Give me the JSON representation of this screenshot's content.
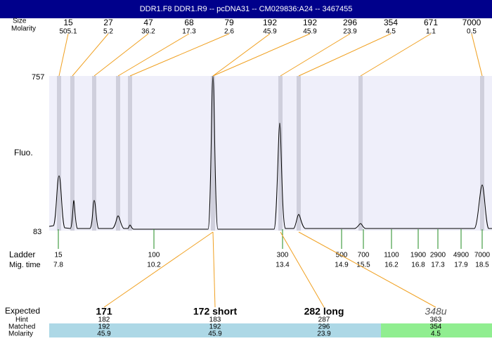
{
  "title": "DDR1.F8  DDR1.R9 -- pcDNA31 -- CM029836:A24 -- 3467455",
  "header_rows": {
    "size_label": "Size",
    "molarity_label": "Molarity"
  },
  "peaks": [
    {
      "size": 15,
      "molarity": 505.1
    },
    {
      "size": 27,
      "molarity": 5.2
    },
    {
      "size": 47,
      "molarity": 36.2
    },
    {
      "size": 68,
      "molarity": 17.3
    },
    {
      "size": 79,
      "molarity": 2.6
    },
    {
      "size": 192,
      "molarity": 45.9
    },
    {
      "size": 192,
      "molarity": 45.9
    },
    {
      "size": 296,
      "molarity": 23.9
    },
    {
      "size": 354,
      "molarity": 4.5
    },
    {
      "size": 671,
      "molarity": 1.1
    },
    {
      "size": 7000,
      "molarity": 0.5
    }
  ],
  "y_axis": {
    "top": 757,
    "bottom": 83,
    "label": "Fluo."
  },
  "ladder": {
    "label": "Ladder",
    "time_label": "Mig. time",
    "sizes": [
      15,
      100,
      300,
      500,
      700,
      1100,
      1900,
      2900,
      4900,
      7000
    ],
    "times": [
      7.8,
      10.2,
      13.4,
      14.9,
      15.5,
      16.2,
      16.8,
      17.3,
      17.9,
      18.5
    ]
  },
  "results": {
    "labels": {
      "expected": "Expected",
      "hint": "Hint",
      "matched": "Matched",
      "molarity": "Molarity"
    },
    "rows": [
      {
        "expected": "171",
        "hint": 182,
        "matched": 192,
        "molarity": 45.9
      },
      {
        "expected": "172 short",
        "hint": 183,
        "matched": 192,
        "molarity": 45.9
      },
      {
        "expected": "282 long",
        "hint": 287,
        "matched": 296,
        "molarity": 23.9
      },
      {
        "expected": "348u",
        "hint": 363,
        "matched": 354,
        "molarity": 4.5
      }
    ]
  }
}
